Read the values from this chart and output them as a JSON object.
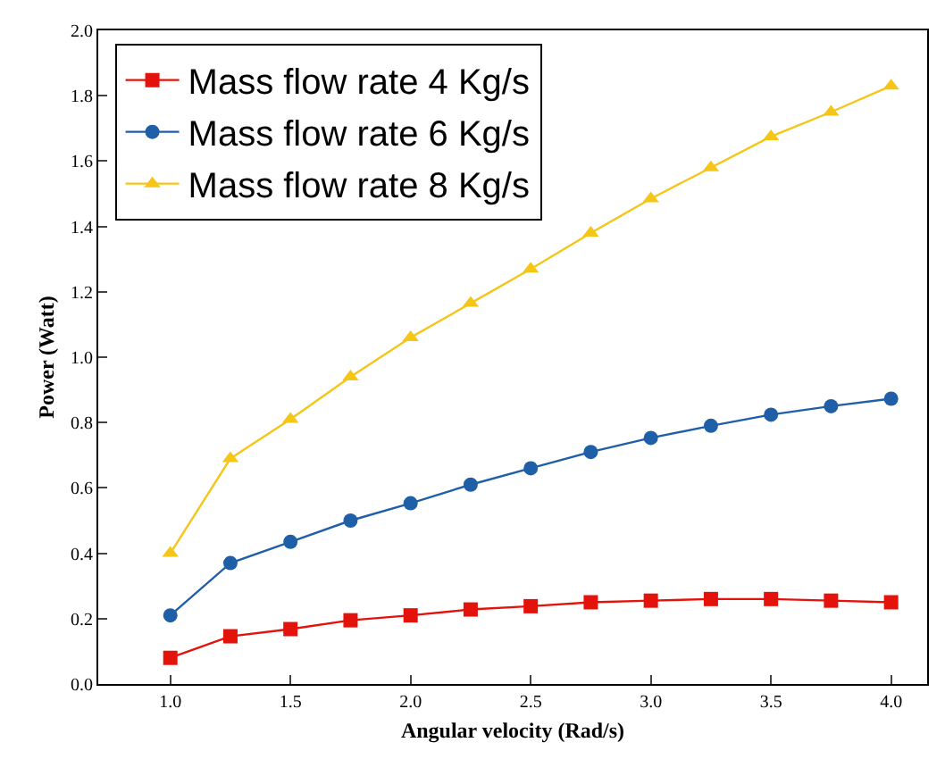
{
  "chart_data": {
    "type": "line",
    "xlabel": "Angular velocity (Rad/s)",
    "ylabel": "Power (Watt)",
    "x": [
      1.0,
      1.25,
      1.5,
      1.75,
      2.0,
      2.25,
      2.5,
      2.75,
      3.0,
      3.25,
      3.5,
      3.75,
      4.0
    ],
    "series": [
      {
        "name": "Mass flow rate 4 Kg/s",
        "color": "#e3120b",
        "marker": "square",
        "values": [
          0.08,
          0.146,
          0.168,
          0.195,
          0.21,
          0.228,
          0.238,
          0.25,
          0.255,
          0.26,
          0.26,
          0.255,
          0.25
        ]
      },
      {
        "name": "Mass flow rate 6 Kg/s",
        "color": "#1f5fa8",
        "marker": "circle",
        "values": [
          0.21,
          0.37,
          0.435,
          0.5,
          0.553,
          0.61,
          0.66,
          0.71,
          0.753,
          0.79,
          0.824,
          0.85,
          0.873
        ]
      },
      {
        "name": "Mass flow rate 8 Kg/s",
        "color": "#f5c518",
        "marker": "triangle",
        "values": [
          0.4,
          0.69,
          0.81,
          0.94,
          1.06,
          1.165,
          1.27,
          1.38,
          1.485,
          1.58,
          1.675,
          1.75,
          1.83
        ]
      }
    ],
    "xlim": [
      0.7,
      4.15
    ],
    "ylim": [
      0,
      2.0
    ],
    "xticks": [
      {
        "value": 1,
        "label": "1.0"
      },
      1.5,
      {
        "value": 2,
        "label": "2.0"
      },
      2.5,
      {
        "value": 3,
        "label": "3.0"
      },
      3.5,
      {
        "value": 4,
        "label": "4.0"
      }
    ],
    "yticks": [
      {
        "value": 0,
        "label": "0.0"
      },
      0.2,
      0.4,
      0.6,
      0.8,
      {
        "value": 1,
        "label": "1.0"
      },
      1.2,
      1.4,
      1.6,
      1.8,
      {
        "value": 2,
        "label": "2.0"
      }
    ],
    "grid": false,
    "legend": "top left",
    "line_style": "solid"
  }
}
